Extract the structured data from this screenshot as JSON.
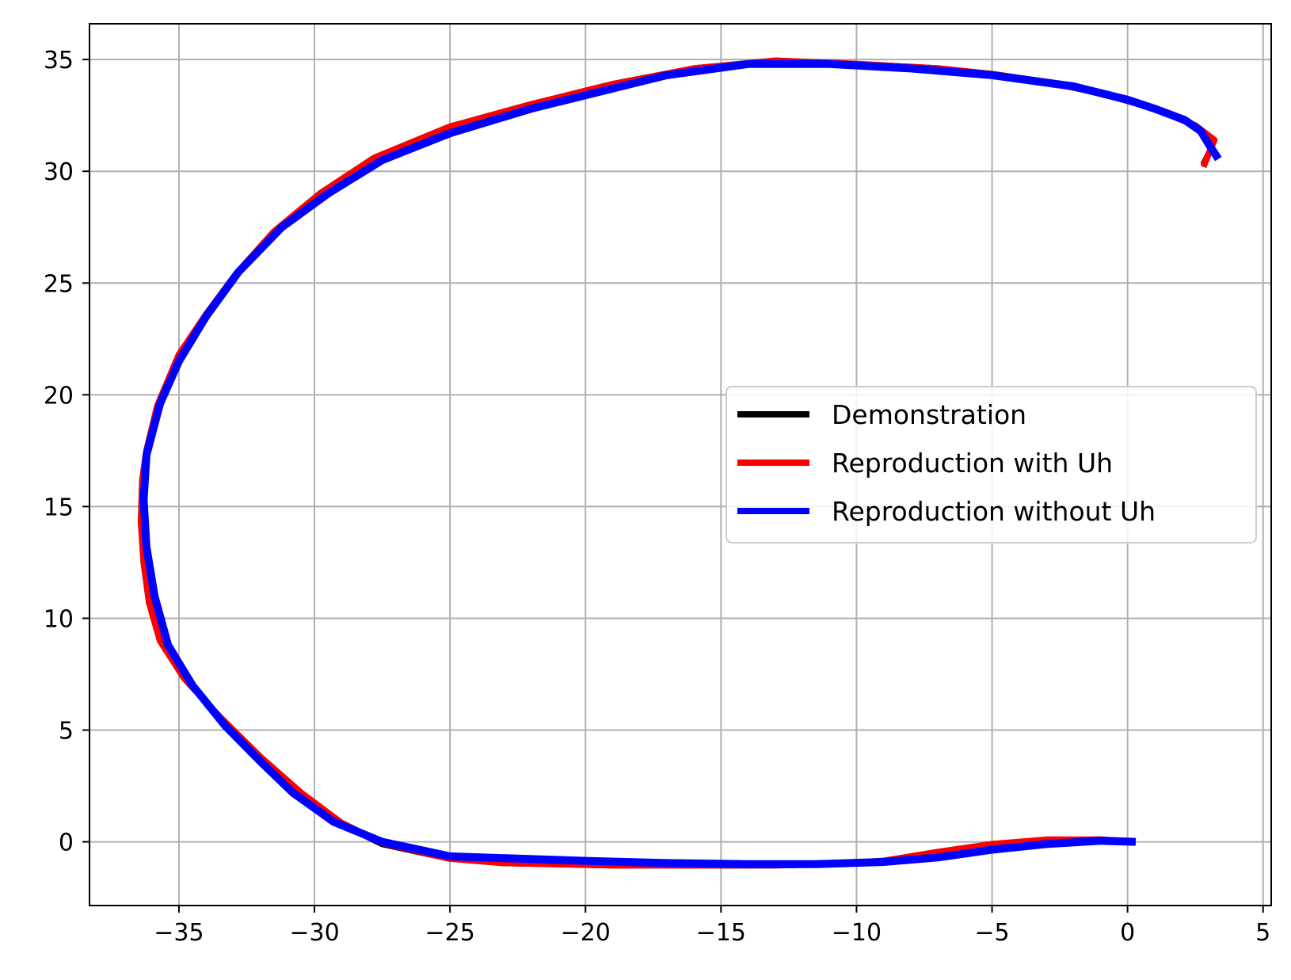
{
  "chart_data": {
    "type": "line",
    "title": "",
    "xlabel": "",
    "ylabel": "",
    "xlim": [
      -38.3,
      5.3
    ],
    "ylim": [
      -2.85,
      36.6
    ],
    "x_ticks": [
      -35,
      -30,
      -25,
      -20,
      -15,
      -10,
      -5,
      0,
      5
    ],
    "y_ticks": [
      0,
      5,
      10,
      15,
      20,
      25,
      30,
      35
    ],
    "x_tick_labels": [
      "−35",
      "−30",
      "−25",
      "−20",
      "−15",
      "−10",
      "−5",
      "0",
      "5"
    ],
    "y_tick_labels": [
      "0",
      "5",
      "10",
      "15",
      "20",
      "25",
      "30",
      "35"
    ],
    "grid": true,
    "legend_position": "center-right",
    "series": [
      {
        "name": "Demonstration",
        "color": "#000000",
        "points": [
          [
            0.3,
            0.0
          ],
          [
            -1.0,
            0.1
          ],
          [
            -3.0,
            0.05
          ],
          [
            -5.0,
            -0.15
          ],
          [
            -7.0,
            -0.5
          ],
          [
            -9.0,
            -0.85
          ],
          [
            -11.0,
            -1.0
          ],
          [
            -13.0,
            -1.05
          ],
          [
            -15.0,
            -1.05
          ],
          [
            -17.0,
            -1.05
          ],
          [
            -19.0,
            -1.05
          ],
          [
            -21.0,
            -1.0
          ],
          [
            -23.0,
            -0.95
          ],
          [
            -25.0,
            -0.75
          ],
          [
            -27.5,
            -0.1
          ],
          [
            -29.0,
            0.8
          ],
          [
            -30.5,
            2.2
          ],
          [
            -32.0,
            3.8
          ],
          [
            -33.5,
            5.6
          ],
          [
            -34.8,
            7.3
          ],
          [
            -35.7,
            9.0
          ],
          [
            -36.1,
            10.7
          ],
          [
            -36.3,
            12.5
          ],
          [
            -36.4,
            14.3
          ],
          [
            -36.35,
            16.2
          ],
          [
            -36.2,
            17.5
          ],
          [
            -35.8,
            19.5
          ],
          [
            -35.0,
            21.8
          ],
          [
            -34.0,
            23.6
          ],
          [
            -32.9,
            25.4
          ],
          [
            -31.5,
            27.3
          ],
          [
            -29.8,
            29.0
          ],
          [
            -27.8,
            30.6
          ],
          [
            -25.0,
            32.0
          ],
          [
            -22.0,
            33.0
          ],
          [
            -19.0,
            33.9
          ],
          [
            -16.0,
            34.6
          ],
          [
            -13.0,
            34.95
          ],
          [
            -10.0,
            34.8
          ],
          [
            -7.0,
            34.6
          ],
          [
            -5.0,
            34.35
          ],
          [
            -3.0,
            34.0
          ],
          [
            -1.0,
            33.5
          ],
          [
            1.0,
            32.8
          ],
          [
            2.5,
            32.05
          ],
          [
            3.2,
            31.4
          ],
          [
            3.0,
            30.8
          ],
          [
            2.8,
            30.3
          ]
        ]
      },
      {
        "name": "Reproduction with Uh",
        "color": "#ff0000",
        "points": [
          [
            0.3,
            0.0
          ],
          [
            -1.0,
            0.1
          ],
          [
            -3.0,
            0.1
          ],
          [
            -5.0,
            -0.1
          ],
          [
            -7.0,
            -0.45
          ],
          [
            -9.0,
            -0.85
          ],
          [
            -11.0,
            -1.0
          ],
          [
            -13.0,
            -1.05
          ],
          [
            -15.0,
            -1.05
          ],
          [
            -17.0,
            -1.05
          ],
          [
            -19.0,
            -1.05
          ],
          [
            -21.0,
            -1.0
          ],
          [
            -23.0,
            -0.95
          ],
          [
            -25.0,
            -0.75
          ],
          [
            -27.5,
            -0.05
          ],
          [
            -29.0,
            0.85
          ],
          [
            -30.5,
            2.2
          ],
          [
            -32.0,
            3.8
          ],
          [
            -33.5,
            5.6
          ],
          [
            -34.8,
            7.3
          ],
          [
            -35.7,
            9.0
          ],
          [
            -36.1,
            10.7
          ],
          [
            -36.3,
            12.5
          ],
          [
            -36.4,
            14.3
          ],
          [
            -36.35,
            16.2
          ],
          [
            -36.2,
            17.5
          ],
          [
            -35.8,
            19.5
          ],
          [
            -35.0,
            21.8
          ],
          [
            -34.0,
            23.6
          ],
          [
            -32.9,
            25.4
          ],
          [
            -31.5,
            27.3
          ],
          [
            -29.8,
            29.0
          ],
          [
            -27.8,
            30.6
          ],
          [
            -25.0,
            32.0
          ],
          [
            -22.0,
            33.0
          ],
          [
            -19.0,
            33.9
          ],
          [
            -16.0,
            34.6
          ],
          [
            -13.0,
            34.95
          ],
          [
            -10.0,
            34.8
          ],
          [
            -7.0,
            34.6
          ],
          [
            -5.0,
            34.35
          ],
          [
            -3.0,
            34.0
          ],
          [
            -1.0,
            33.5
          ],
          [
            1.0,
            32.8
          ],
          [
            2.5,
            32.05
          ],
          [
            3.2,
            31.4
          ],
          [
            3.0,
            30.8
          ],
          [
            2.8,
            30.2
          ]
        ]
      },
      {
        "name": "Reproduction without Uh",
        "color": "#0000ff",
        "points": [
          [
            0.3,
            0.0
          ],
          [
            -1.0,
            0.05
          ],
          [
            -3.0,
            -0.1
          ],
          [
            -5.0,
            -0.35
          ],
          [
            -7.0,
            -0.7
          ],
          [
            -9.0,
            -0.9
          ],
          [
            -11.5,
            -1.0
          ],
          [
            -14.0,
            -1.0
          ],
          [
            -17.0,
            -0.95
          ],
          [
            -20.0,
            -0.85
          ],
          [
            -22.5,
            -0.75
          ],
          [
            -25.0,
            -0.65
          ],
          [
            -27.5,
            0.0
          ],
          [
            -29.3,
            0.9
          ],
          [
            -30.8,
            2.2
          ],
          [
            -32.0,
            3.6
          ],
          [
            -33.3,
            5.2
          ],
          [
            -34.5,
            7.0
          ],
          [
            -35.4,
            8.8
          ],
          [
            -35.9,
            11.0
          ],
          [
            -36.2,
            13.2
          ],
          [
            -36.3,
            15.3
          ],
          [
            -36.2,
            17.3
          ],
          [
            -35.7,
            19.6
          ],
          [
            -35.0,
            21.5
          ],
          [
            -34.0,
            23.5
          ],
          [
            -32.8,
            25.5
          ],
          [
            -31.2,
            27.5
          ],
          [
            -29.5,
            29.0
          ],
          [
            -27.5,
            30.5
          ],
          [
            -25.0,
            31.7
          ],
          [
            -22.0,
            32.8
          ],
          [
            -19.0,
            33.7
          ],
          [
            -17.0,
            34.3
          ],
          [
            -14.0,
            34.8
          ],
          [
            -11.0,
            34.8
          ],
          [
            -8.0,
            34.6
          ],
          [
            -5.0,
            34.3
          ],
          [
            -2.0,
            33.8
          ],
          [
            0.0,
            33.2
          ],
          [
            1.0,
            32.8
          ],
          [
            2.1,
            32.3
          ],
          [
            2.7,
            31.8
          ],
          [
            3.0,
            31.2
          ],
          [
            3.35,
            30.55
          ]
        ]
      }
    ]
  }
}
